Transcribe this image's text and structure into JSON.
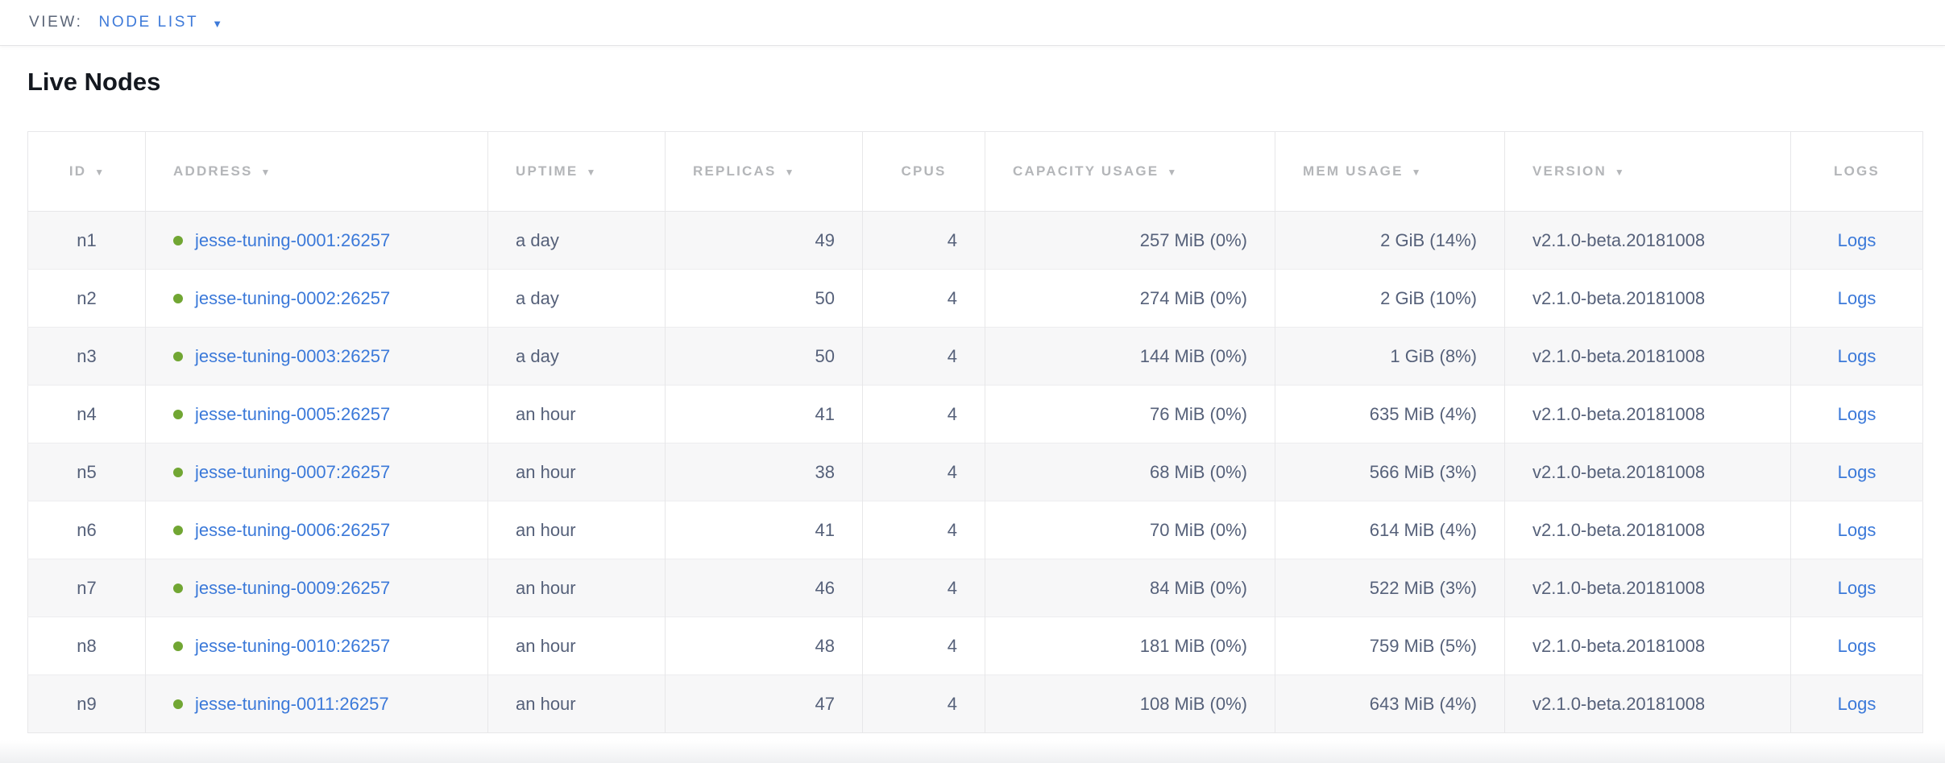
{
  "view_bar": {
    "label": "VIEW:",
    "selected": "NODE LIST"
  },
  "page": {
    "title": "Live Nodes"
  },
  "icons": {
    "dropdown_caret": "▼",
    "sort_desc": "▼"
  },
  "colors": {
    "link_blue": "#3b79d9",
    "dropdown_blue": "#3e7ad9",
    "live_status_green": "#71a633",
    "header_gray": "#b4b6b9",
    "cell_text": "#56617a"
  },
  "table": {
    "columns": [
      {
        "key": "id",
        "label": "ID",
        "sortable": true,
        "align": "center",
        "header_align": "center"
      },
      {
        "key": "address",
        "label": "ADDRESS",
        "sortable": true,
        "align": "left",
        "header_align": "left"
      },
      {
        "key": "uptime",
        "label": "UPTIME",
        "sortable": true,
        "align": "left",
        "header_align": "left"
      },
      {
        "key": "replicas",
        "label": "REPLICAS",
        "sortable": true,
        "align": "right",
        "header_align": "left"
      },
      {
        "key": "cpus",
        "label": "CPUS",
        "sortable": false,
        "align": "right",
        "header_align": "center"
      },
      {
        "key": "capacity_usage",
        "label": "CAPACITY USAGE",
        "sortable": true,
        "align": "right",
        "header_align": "left"
      },
      {
        "key": "mem_usage",
        "label": "MEM USAGE",
        "sortable": true,
        "align": "right",
        "header_align": "left"
      },
      {
        "key": "version",
        "label": "VERSION",
        "sortable": true,
        "align": "left",
        "header_align": "left"
      },
      {
        "key": "logs",
        "label": "LOGS",
        "sortable": false,
        "align": "center",
        "header_align": "center"
      }
    ],
    "rows": [
      {
        "id": "n1",
        "address": "jesse-tuning-0001:26257",
        "uptime": "a day",
        "replicas": "49",
        "cpus": "4",
        "capacity_usage": "257 MiB (0%)",
        "mem_usage": "2 GiB (14%)",
        "version": "v2.1.0-beta.20181008",
        "logs": "Logs"
      },
      {
        "id": "n2",
        "address": "jesse-tuning-0002:26257",
        "uptime": "a day",
        "replicas": "50",
        "cpus": "4",
        "capacity_usage": "274 MiB (0%)",
        "mem_usage": "2 GiB (10%)",
        "version": "v2.1.0-beta.20181008",
        "logs": "Logs"
      },
      {
        "id": "n3",
        "address": "jesse-tuning-0003:26257",
        "uptime": "a day",
        "replicas": "50",
        "cpus": "4",
        "capacity_usage": "144 MiB (0%)",
        "mem_usage": "1 GiB (8%)",
        "version": "v2.1.0-beta.20181008",
        "logs": "Logs"
      },
      {
        "id": "n4",
        "address": "jesse-tuning-0005:26257",
        "uptime": "an hour",
        "replicas": "41",
        "cpus": "4",
        "capacity_usage": "76 MiB (0%)",
        "mem_usage": "635 MiB (4%)",
        "version": "v2.1.0-beta.20181008",
        "logs": "Logs"
      },
      {
        "id": "n5",
        "address": "jesse-tuning-0007:26257",
        "uptime": "an hour",
        "replicas": "38",
        "cpus": "4",
        "capacity_usage": "68 MiB (0%)",
        "mem_usage": "566 MiB (3%)",
        "version": "v2.1.0-beta.20181008",
        "logs": "Logs"
      },
      {
        "id": "n6",
        "address": "jesse-tuning-0006:26257",
        "uptime": "an hour",
        "replicas": "41",
        "cpus": "4",
        "capacity_usage": "70 MiB (0%)",
        "mem_usage": "614 MiB (4%)",
        "version": "v2.1.0-beta.20181008",
        "logs": "Logs"
      },
      {
        "id": "n7",
        "address": "jesse-tuning-0009:26257",
        "uptime": "an hour",
        "replicas": "46",
        "cpus": "4",
        "capacity_usage": "84 MiB (0%)",
        "mem_usage": "522 MiB (3%)",
        "version": "v2.1.0-beta.20181008",
        "logs": "Logs"
      },
      {
        "id": "n8",
        "address": "jesse-tuning-0010:26257",
        "uptime": "an hour",
        "replicas": "48",
        "cpus": "4",
        "capacity_usage": "181 MiB (0%)",
        "mem_usage": "759 MiB (5%)",
        "version": "v2.1.0-beta.20181008",
        "logs": "Logs"
      },
      {
        "id": "n9",
        "address": "jesse-tuning-0011:26257",
        "uptime": "an hour",
        "replicas": "47",
        "cpus": "4",
        "capacity_usage": "108 MiB (0%)",
        "mem_usage": "643 MiB (4%)",
        "version": "v2.1.0-beta.20181008",
        "logs": "Logs"
      }
    ]
  }
}
